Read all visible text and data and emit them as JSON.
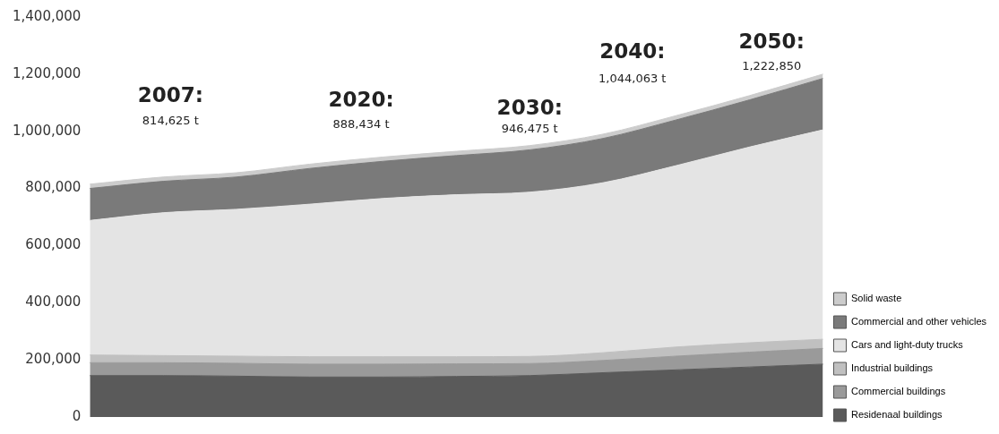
{
  "chart_data": {
    "type": "area",
    "stacked": true,
    "categories": [
      null,
      null,
      null,
      null,
      null,
      null,
      null,
      null,
      null,
      null,
      null
    ],
    "series": [
      {
        "name": "Residenaal buildings",
        "color": "#5a5a5a",
        "values": [
          145000,
          145000,
          143000,
          140000,
          140000,
          142000,
          145000,
          155000,
          165000,
          175000,
          185000
        ]
      },
      {
        "name": "Commercial buildings",
        "color": "#9a9a9a",
        "values": [
          45000,
          45000,
          45000,
          45000,
          45000,
          44000,
          42000,
          43000,
          48000,
          52000,
          55000
        ]
      },
      {
        "name": "Industrial buildings",
        "color": "#c0c0c0",
        "values": [
          27000,
          25000,
          25000,
          26000,
          26000,
          25000,
          25000,
          27000,
          32000,
          33000,
          32000
        ]
      },
      {
        "name": "Cars and light-duty trucks",
        "color": "#e4e4e4",
        "values": [
          471000,
          500000,
          514000,
          534000,
          554000,
          567000,
          575000,
          595000,
          635000,
          685000,
          733000
        ]
      },
      {
        "name": "Commercial and other vehicles",
        "color": "#7a7a7a",
        "values": [
          112000,
          110000,
          113000,
          125000,
          130000,
          137000,
          148000,
          155000,
          160000,
          165000,
          180000
        ]
      },
      {
        "name": "Solid waste",
        "color": "#cccccc",
        "values": [
          15000,
          15000,
          15000,
          15000,
          15000,
          15000,
          15000,
          15000,
          15000,
          15000,
          15000
        ]
      }
    ],
    "ylim": [
      0,
      1400000
    ],
    "yticks": [
      0,
      {
        "value": 200000,
        "label": "200,000"
      },
      {
        "value": 400000,
        "label": "400,000"
      },
      {
        "value": 600000,
        "label": "600,000"
      },
      {
        "value": 800000,
        "label": "800,000"
      },
      {
        "value": 1000000,
        "label": "1,000,000"
      },
      {
        "value": 1200000,
        "label": "1,200,000"
      },
      {
        "value": 1400000,
        "label": "1,400,000"
      }
    ],
    "tick_labels": "y",
    "grid": false,
    "legend": "bottom right",
    "annotations": [
      "2007:",
      "814,625 t",
      "2020:",
      "888,434 t",
      "2030:",
      "946,475 t",
      "2040:",
      "1,044,063 t",
      "2050:",
      "1,222,850"
    ]
  }
}
